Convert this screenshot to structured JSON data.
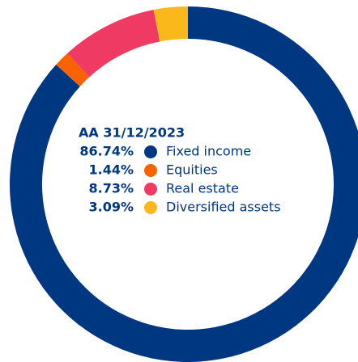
{
  "chart_data": {
    "type": "donut",
    "title": "AA 31/12/2023",
    "categories": [
      "Fixed income",
      "Equities",
      "Real estate",
      "Diversified assets"
    ],
    "values": [
      86.74,
      1.44,
      8.73,
      3.09
    ],
    "value_labels": [
      "86.74%",
      "1.44%",
      "8.73%",
      "3.09%"
    ],
    "colors": [
      "#003781",
      "#f86200",
      "#ef3b63",
      "#fbb81a"
    ]
  }
}
